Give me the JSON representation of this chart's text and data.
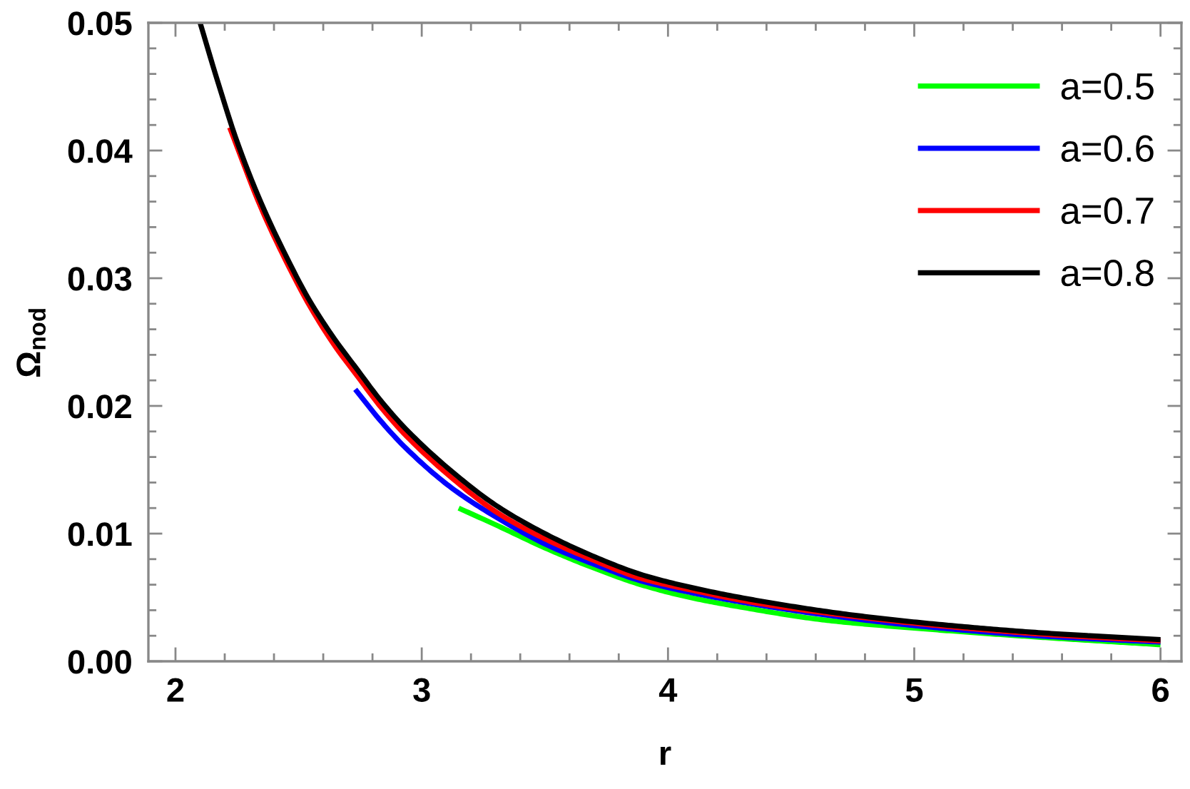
{
  "chart_data": {
    "type": "line",
    "xlabel": "r",
    "ylabel": "Ω$_{nod}$",
    "xlim": [
      1.89,
      6.085
    ],
    "ylim": [
      0,
      0.05
    ],
    "xticks": [
      2,
      {
        "value": 2.2,
        "label": null
      },
      {
        "value": 2.4,
        "label": null
      },
      {
        "value": 2.6,
        "label": null
      },
      {
        "value": 2.8,
        "label": null
      },
      3,
      {
        "value": 3.2,
        "label": null
      },
      {
        "value": 3.4,
        "label": null
      },
      {
        "value": 3.6,
        "label": null
      },
      {
        "value": 3.8,
        "label": null
      },
      4,
      {
        "value": 4.2,
        "label": null
      },
      {
        "value": 4.4,
        "label": null
      },
      {
        "value": 4.6,
        "label": null
      },
      {
        "value": 4.8,
        "label": null
      },
      5,
      {
        "value": 5.2,
        "label": null
      },
      {
        "value": 5.4,
        "label": null
      },
      {
        "value": 5.6,
        "label": null
      },
      {
        "value": 5.8,
        "label": null
      },
      6
    ],
    "yticks": [
      {
        "value": 0,
        "label": "0.00"
      },
      {
        "value": 0.002,
        "label": null
      },
      {
        "value": 0.004,
        "label": null
      },
      {
        "value": 0.006,
        "label": null
      },
      {
        "value": 0.008,
        "label": null
      },
      0.01,
      {
        "value": 0.012,
        "label": null
      },
      {
        "value": 0.014,
        "label": null
      },
      {
        "value": 0.016,
        "label": null
      },
      {
        "value": 0.018,
        "label": null
      },
      0.02,
      {
        "value": 0.022,
        "label": null
      },
      {
        "value": 0.024,
        "label": null
      },
      {
        "value": 0.026,
        "label": null
      },
      {
        "value": 0.028,
        "label": null
      },
      0.03,
      {
        "value": 0.032,
        "label": null
      },
      {
        "value": 0.034,
        "label": null
      },
      {
        "value": 0.036,
        "label": null
      },
      {
        "value": 0.038,
        "label": null
      },
      0.04,
      {
        "value": 0.042,
        "label": null
      },
      {
        "value": 0.044,
        "label": null
      },
      {
        "value": 0.046,
        "label": null
      },
      {
        "value": 0.048,
        "label": null
      },
      0.05
    ],
    "grid": false,
    "legend": "top right",
    "marker": "none",
    "line_style": "solid",
    "series": [
      {
        "name": "a=0.5",
        "color": "#00ff00",
        "x": [
          3.15,
          3.31,
          3.51,
          3.7,
          3.89,
          4.09,
          4.28,
          4.65,
          5.0,
          5.5,
          6.0
        ],
        "values": [
          0.012,
          0.0106,
          0.0088,
          0.0073,
          0.006,
          0.005,
          0.0043,
          0.0032,
          0.0026,
          0.0019,
          0.0013
        ]
      },
      {
        "name": "a=0.6",
        "color": "#0000ff",
        "x": [
          2.73,
          2.83,
          2.93,
          3.12,
          3.31,
          3.51,
          3.7,
          3.89,
          4.09,
          4.28,
          4.65,
          5.0,
          5.5,
          6.0
        ],
        "values": [
          0.0213,
          0.0189,
          0.0168,
          0.0136,
          0.0112,
          0.0091,
          0.0076,
          0.0063,
          0.0054,
          0.0047,
          0.0036,
          0.0028,
          0.002,
          0.0015
        ]
      },
      {
        "name": "a=0.7",
        "color": "#ff0000",
        "x": [
          2.22,
          2.35,
          2.45,
          2.54,
          2.64,
          2.74,
          2.83,
          2.93,
          3.12,
          3.31,
          3.51,
          3.7,
          3.89,
          4.09,
          4.38,
          4.76,
          5.15,
          5.54,
          6.0
        ],
        "values": [
          0.0418,
          0.0354,
          0.0313,
          0.028,
          0.0249,
          0.0223,
          0.02,
          0.0178,
          0.0144,
          0.0116,
          0.0095,
          0.0079,
          0.0065,
          0.0056,
          0.0045,
          0.0035,
          0.0027,
          0.0021,
          0.0016
        ]
      },
      {
        "name": "a=0.8",
        "color": "#000000",
        "x": [
          2.1,
          2.17,
          2.25,
          2.35,
          2.45,
          2.54,
          2.64,
          2.74,
          2.83,
          2.93,
          3.12,
          3.31,
          3.51,
          3.7,
          3.89,
          4.09,
          4.38,
          4.76,
          5.15,
          5.54,
          6.0
        ],
        "values": [
          0.05,
          0.0455,
          0.0407,
          0.0358,
          0.0317,
          0.0284,
          0.0254,
          0.0228,
          0.0205,
          0.0183,
          0.0149,
          0.0121,
          0.0099,
          0.0082,
          0.0068,
          0.0058,
          0.0047,
          0.0036,
          0.0028,
          0.0022,
          0.0017
        ]
      }
    ]
  }
}
